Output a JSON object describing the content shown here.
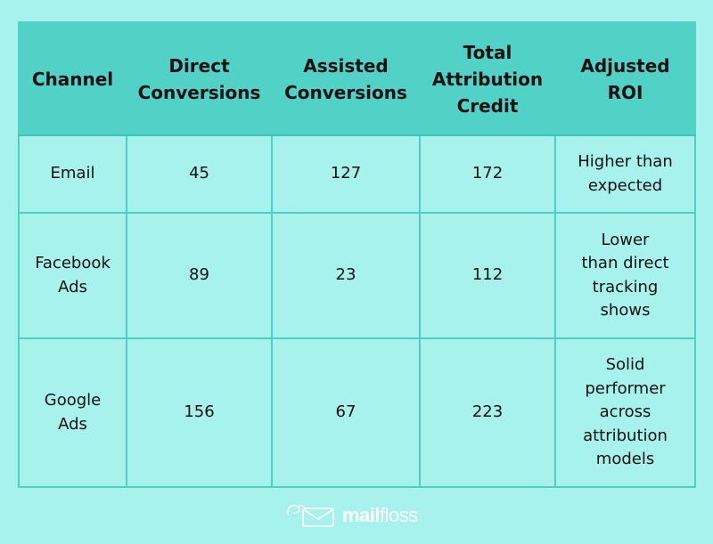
{
  "table": {
    "headers": [
      "Channel",
      "Direct\nConversions",
      "Assisted\nConversions",
      "Total\nAttribution\nCredit",
      "Adjusted\nROI"
    ],
    "rows": [
      [
        "Email",
        "45",
        "127",
        "172",
        "Higher than expected"
      ],
      [
        "Facebook Ads",
        "89",
        "23",
        "112",
        "Lower than direct tracking shows"
      ],
      [
        "Google Ads",
        "156",
        "67",
        "223",
        "Solid performer across attribution models"
      ]
    ]
  },
  "logo": {
    "bold": "mail",
    "light": "floss",
    "icon": "envelope-icon"
  },
  "colors": {
    "background": "#a8f2ee",
    "header": "#52d1c6",
    "border": "#50cfc4"
  }
}
